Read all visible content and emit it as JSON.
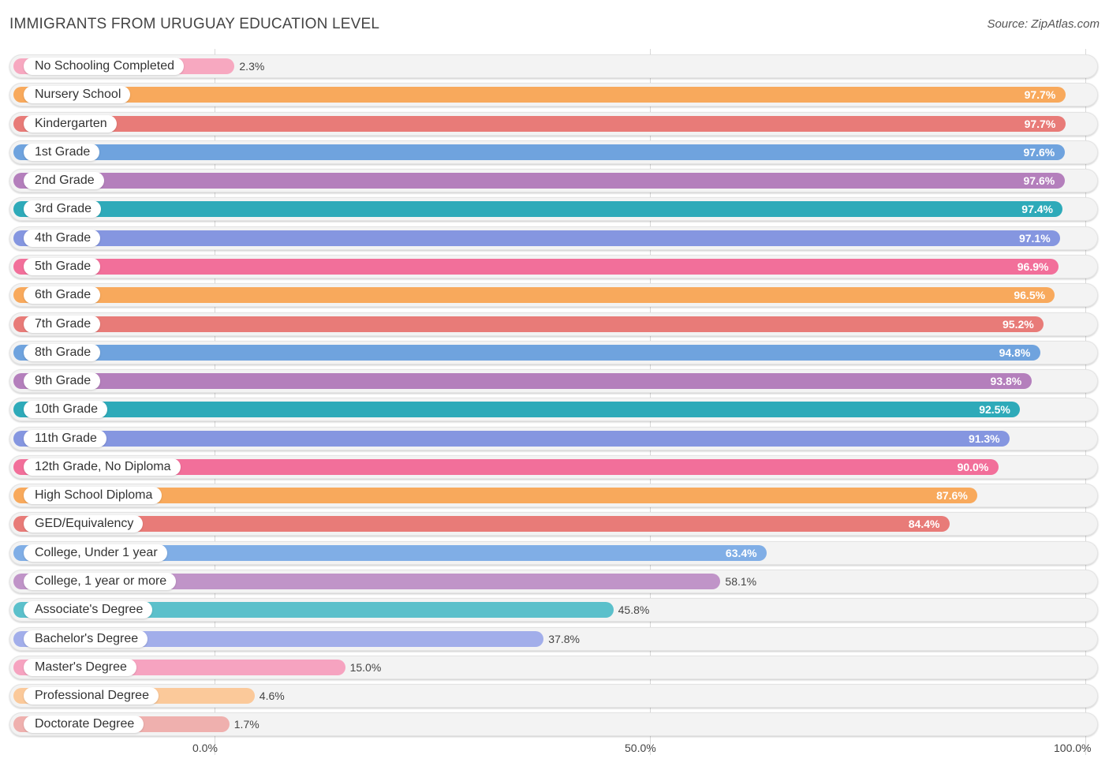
{
  "title": "IMMIGRANTS FROM URUGUAY EDUCATION LEVEL",
  "source": "Source: ZipAtlas.com",
  "chart_data": {
    "type": "bar",
    "orientation": "horizontal",
    "xlim": [
      0,
      100
    ],
    "x_ticks": [
      "0.0%",
      "50.0%",
      "100.0%"
    ],
    "grid": true,
    "categories": [
      "No Schooling Completed",
      "Nursery School",
      "Kindergarten",
      "1st Grade",
      "2nd Grade",
      "3rd Grade",
      "4th Grade",
      "5th Grade",
      "6th Grade",
      "7th Grade",
      "8th Grade",
      "9th Grade",
      "10th Grade",
      "11th Grade",
      "12th Grade, No Diploma",
      "High School Diploma",
      "GED/Equivalency",
      "College, Under 1 year",
      "College, 1 year or more",
      "Associate's Degree",
      "Bachelor's Degree",
      "Master's Degree",
      "Professional Degree",
      "Doctorate Degree"
    ],
    "values": [
      2.3,
      97.7,
      97.7,
      97.6,
      97.6,
      97.4,
      97.1,
      96.9,
      96.5,
      95.2,
      94.8,
      93.8,
      92.5,
      91.3,
      90.0,
      87.6,
      84.4,
      63.4,
      58.1,
      45.8,
      37.8,
      15.0,
      4.6,
      1.7
    ],
    "labels": [
      "2.3%",
      "97.7%",
      "97.7%",
      "97.6%",
      "97.6%",
      "97.4%",
      "97.1%",
      "96.9%",
      "96.5%",
      "95.2%",
      "94.8%",
      "93.8%",
      "92.5%",
      "91.3%",
      "90.0%",
      "87.6%",
      "84.4%",
      "63.4%",
      "58.1%",
      "45.8%",
      "37.8%",
      "15.0%",
      "4.6%",
      "1.7%"
    ],
    "colors": [
      "#f7a8c0",
      "#f8a95c",
      "#e87b78",
      "#6fa3de",
      "#b47fbc",
      "#2eaab9",
      "#8596e0",
      "#f26f9a",
      "#f8a95c",
      "#e87b78",
      "#6fa3de",
      "#b47fbc",
      "#2eaab9",
      "#8596e0",
      "#f26f9a",
      "#f8a95c",
      "#e87b78",
      "#80aee6",
      "#c094c8",
      "#5bc0cb",
      "#a2aeea",
      "#f6a3c0",
      "#fbc99a",
      "#efb0ae"
    ]
  }
}
